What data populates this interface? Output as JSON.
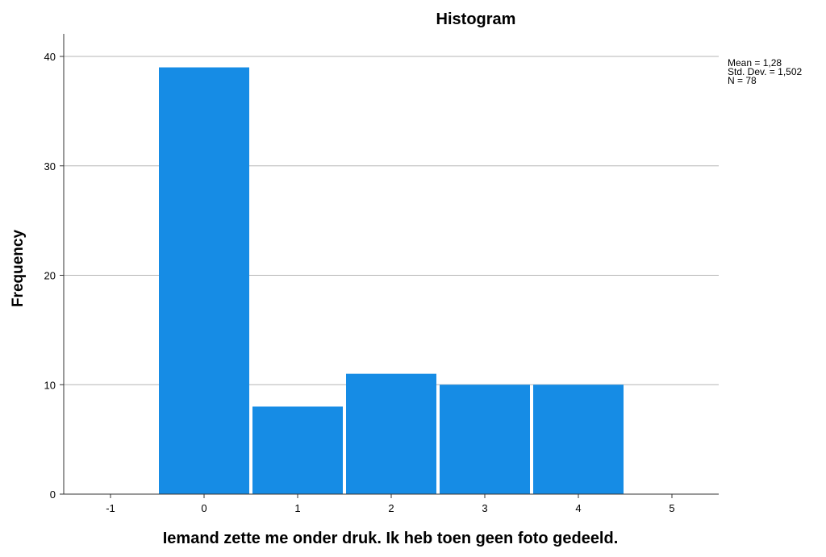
{
  "chart_data": {
    "type": "bar",
    "title": "Histogram",
    "xlabel": "Iemand zette me onder druk. Ik heb toen geen foto gedeeld.",
    "ylabel": "Frequency",
    "x_ticks": [
      "-1",
      "0",
      "1",
      "2",
      "3",
      "4",
      "5"
    ],
    "y_ticks": [
      "0",
      "10",
      "20",
      "30",
      "40"
    ],
    "xlim": [
      -1.5,
      5.5
    ],
    "ylim": [
      0,
      40
    ],
    "categories": [
      "0",
      "1",
      "2",
      "3",
      "4"
    ],
    "values": [
      39,
      8,
      11,
      10,
      10
    ],
    "bar_color": "#168ce5",
    "grid": true,
    "stats": [
      "Mean = 1,28",
      "Std. Dev. = 1,502",
      "N = 78"
    ],
    "stats_placement": "top-right"
  }
}
